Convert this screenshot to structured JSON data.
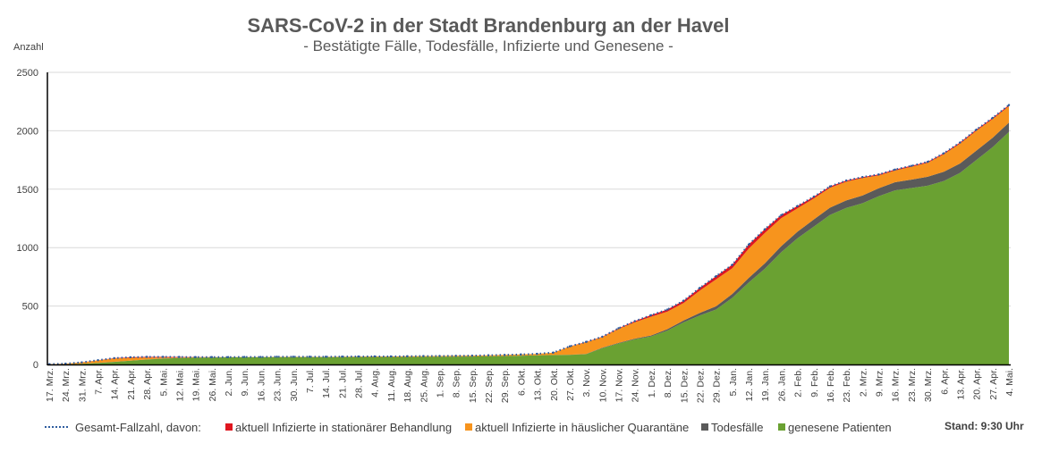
{
  "chart_data": {
    "type": "area",
    "title": "SARS-CoV-2 in der Stadt Brandenburg an der Havel",
    "subtitle": "- Bestätigte Fälle, Todesfälle, Infizierte und Genesene -",
    "ylabel": "Anzahl",
    "xlabel": "",
    "ylim": [
      0,
      2500
    ],
    "yticks": [
      0,
      500,
      1000,
      1500,
      2000,
      2500
    ],
    "grid": true,
    "legend_position": "bottom",
    "stamp": "Stand: 9:30 Uhr",
    "categories": [
      "17. Mrz.",
      "24. Mrz.",
      "31. Mrz.",
      "7. Apr.",
      "14. Apr.",
      "21. Apr.",
      "28. Apr.",
      "5. Mai.",
      "12. Mai.",
      "19. Mai.",
      "26. Mai.",
      "2. Jun.",
      "9. Jun.",
      "16. Jun.",
      "23. Jun.",
      "30. Jun.",
      "7. Jul.",
      "14. Jul.",
      "21. Jul.",
      "28. Jul.",
      "4. Aug.",
      "11. Aug.",
      "18. Aug.",
      "25. Aug.",
      "1. Sep.",
      "8. Sep.",
      "15. Sep.",
      "22. Sep.",
      "29. Sep.",
      "6. Okt.",
      "13. Okt.",
      "20. Okt.",
      "27. Okt.",
      "3. Nov.",
      "10. Nov.",
      "17. Nov.",
      "24. Nov.",
      "1. Dez.",
      "8. Dez.",
      "15. Dez.",
      "22. Dez.",
      "29. Dez.",
      "5. Jan.",
      "12. Jan.",
      "19. Jan.",
      "26. Jan.",
      "2. Feb.",
      "9. Feb.",
      "16. Feb.",
      "23. Feb.",
      "2. Mrz.",
      "9. Mrz.",
      "16. Mrz.",
      "23. Mrz.",
      "30. Mrz.",
      "6. Apr.",
      "13. Apr.",
      "20. Apr.",
      "27. Apr.",
      "4. Mai."
    ],
    "series": [
      {
        "name": "genesene Patienten",
        "color": "#6aa132",
        "values": [
          0,
          2,
          5,
          12,
          22,
          32,
          42,
          50,
          55,
          58,
          60,
          61,
          62,
          62,
          63,
          63,
          63,
          63,
          63,
          64,
          64,
          64,
          64,
          65,
          66,
          67,
          68,
          70,
          72,
          75,
          78,
          80,
          82,
          88,
          140,
          180,
          215,
          240,
          290,
          360,
          420,
          470,
          570,
          700,
          820,
          960,
          1080,
          1180,
          1280,
          1340,
          1380,
          1440,
          1490,
          1510,
          1530,
          1570,
          1640,
          1750,
          1860,
          1990
        ]
      },
      {
        "name": "Todesfälle",
        "color": "#5a5a5a",
        "values": [
          0,
          0,
          0,
          1,
          1,
          1,
          1,
          1,
          1,
          1,
          1,
          1,
          1,
          1,
          1,
          1,
          1,
          1,
          1,
          1,
          1,
          1,
          1,
          1,
          1,
          1,
          1,
          1,
          1,
          1,
          1,
          1,
          1,
          2,
          3,
          4,
          6,
          8,
          12,
          16,
          22,
          28,
          34,
          40,
          46,
          52,
          56,
          60,
          62,
          64,
          66,
          68,
          70,
          72,
          76,
          80,
          80,
          80,
          80,
          80
        ]
      },
      {
        "name": "aktuell Infizierte in häuslicher Quarantäne",
        "color": "#f7941d",
        "values": [
          2,
          5,
          12,
          22,
          28,
          24,
          16,
          8,
          4,
          2,
          1,
          1,
          1,
          1,
          2,
          2,
          2,
          2,
          3,
          3,
          4,
          4,
          5,
          6,
          6,
          6,
          7,
          8,
          9,
          10,
          12,
          20,
          70,
          100,
          90,
          120,
          140,
          160,
          150,
          150,
          190,
          230,
          220,
          250,
          260,
          240,
          200,
          180,
          170,
          160,
          150,
          110,
          100,
          110,
          120,
          150,
          170,
          170,
          160,
          140
        ]
      },
      {
        "name": "aktuell Infizierte in stationärer Behandlung",
        "color": "#e0161f",
        "values": [
          0,
          0,
          1,
          2,
          3,
          5,
          6,
          6,
          4,
          2,
          1,
          0,
          0,
          0,
          0,
          0,
          0,
          0,
          0,
          0,
          0,
          0,
          0,
          0,
          0,
          0,
          0,
          0,
          0,
          0,
          0,
          1,
          2,
          3,
          4,
          6,
          10,
          14,
          18,
          20,
          24,
          28,
          30,
          36,
          32,
          26,
          20,
          16,
          12,
          10,
          8,
          8,
          8,
          8,
          8,
          8,
          10,
          10,
          10,
          10
        ]
      }
    ],
    "total_line": {
      "name": "Gesamt-Fallzahl, davon:",
      "color": "#2e5c9e",
      "style": "dotted"
    }
  }
}
